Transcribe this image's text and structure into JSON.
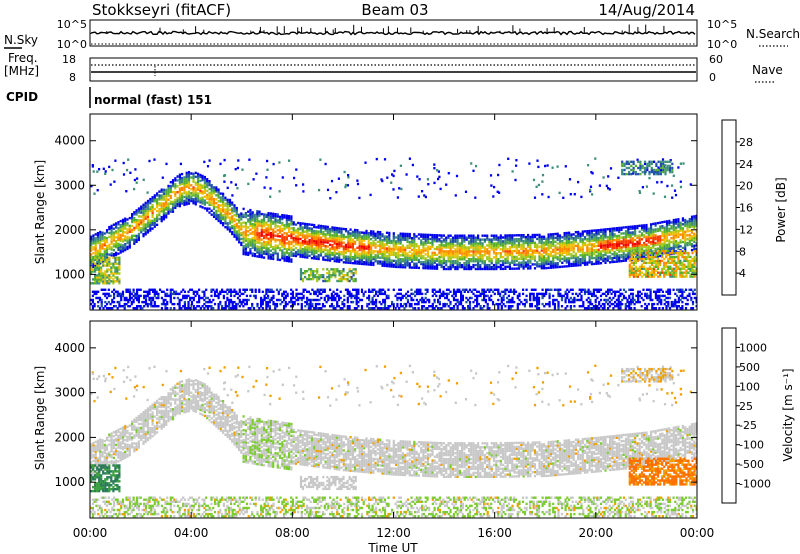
{
  "header": {
    "station": "Stokkseyri (fitACF)",
    "beam": "Beam 03",
    "date": "14/Aug/2014"
  },
  "nsky_panel": {
    "left_label": "N.Sky",
    "left_ticks": [
      "10^5",
      "10^0"
    ],
    "right_label": "N.Search",
    "right_ticks": [
      "10^5",
      "10^0"
    ]
  },
  "freq_panel": {
    "left_label_line1": "Freq.",
    "left_label_line2": "[MHz]",
    "left_ticks": [
      "18",
      "8"
    ],
    "right_label": "Nave",
    "right_ticks": [
      "60",
      "0"
    ]
  },
  "cpid_panel": {
    "label": "CPID",
    "mode": "normal (fast)  151"
  },
  "chart_data": [
    {
      "type": "heatmap",
      "name": "power",
      "ylabel": "Slant Range [km]",
      "ylim": [
        200,
        4600
      ],
      "yticks": [
        1000,
        2000,
        3000,
        4000
      ],
      "xlim_hours": [
        0,
        24
      ],
      "colorbar_label": "Power [dB]",
      "colorbar_ticks": [
        "28",
        "24",
        "20",
        "16",
        "12",
        "8",
        "4"
      ],
      "colors": [
        "#0000ee",
        "#2050a8",
        "#3f8f7a",
        "#55b030",
        "#a8c81e",
        "#f0c000",
        "#ff8a00",
        "#ff3c00",
        "#ee0000"
      ],
      "echo_band_km": [
        [
          0,
          1500
        ],
        [
          1.5,
          1950
        ],
        [
          2.5,
          2420
        ],
        [
          3.5,
          2890
        ],
        [
          4.0,
          2970
        ],
        [
          4.5,
          2840
        ],
        [
          5.5,
          2320
        ],
        [
          6.0,
          1980
        ],
        [
          6.8,
          1900
        ],
        [
          8.0,
          1800
        ],
        [
          10.0,
          1650
        ],
        [
          12.0,
          1550
        ],
        [
          14.0,
          1500
        ],
        [
          16.0,
          1500
        ],
        [
          18.0,
          1520
        ],
        [
          20.0,
          1620
        ],
        [
          22.0,
          1740
        ],
        [
          24.0,
          1950
        ]
      ]
    },
    {
      "type": "heatmap",
      "name": "velocity",
      "ylabel": "Slant Range [km]",
      "ylim": [
        200,
        4600
      ],
      "yticks": [
        1000,
        2000,
        3000,
        4000
      ],
      "xlim_hours": [
        0,
        24
      ],
      "colorbar_label": "Velocity [m s⁻¹]",
      "colorbar_ticks": [
        "1000",
        "500",
        "100",
        "25",
        "-25",
        "-100",
        "-500",
        "-1000"
      ],
      "colors": [
        "#2040a8",
        "#2a7a5a",
        "#3aa040",
        "#7ccc30",
        "#c8c8c8",
        "#c8c8c8",
        "#f0a000",
        "#ff7000",
        "#ee0000"
      ]
    }
  ],
  "xaxis": {
    "ticks": [
      "00:00",
      "04:00",
      "08:00",
      "12:00",
      "16:00",
      "20:00",
      "00:00"
    ],
    "label": "Time UT"
  }
}
